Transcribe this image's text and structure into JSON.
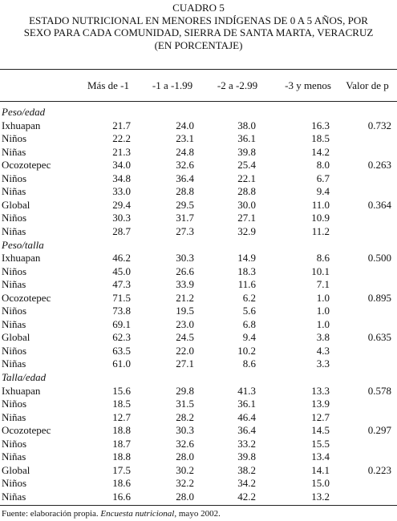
{
  "title": [
    "CUADRO 5",
    "ESTADO NUTRICIONAL EN MENORES INDÍGENAS DE 0 A 5 AÑOS, POR",
    "SEXO PARA CADA COMUNIDAD, SIERRA DE SANTA MARTA, VERACRUZ",
    "(EN PORCENTAJE)"
  ],
  "table": {
    "header": [
      "Más de -1",
      "-1 a -1.99",
      "-2 a -2.99",
      "-3 y menos",
      "Valor de p"
    ],
    "sections": [
      {
        "name": "Peso/edad",
        "rows": [
          [
            "Ixhuapan",
            "21.7",
            "24.0",
            "38.0",
            "16.3",
            "0.732"
          ],
          [
            "Niños",
            "22.2",
            "23.1",
            "36.1",
            "18.5"
          ],
          [
            "Niñas",
            "21.3",
            "24.8",
            "39.8",
            "14.2"
          ],
          [
            "Ocozotepec",
            "34.0",
            "32.6",
            "25.4",
            "8.0",
            "0.263"
          ],
          [
            "Niños",
            "34.8",
            "36.4",
            "22.1",
            "6.7"
          ],
          [
            "Niñas",
            "33.0",
            "28.8",
            "28.8",
            "9.4"
          ],
          [
            "Global",
            "29.4",
            "29.5",
            "30.0",
            "11.0",
            "0.364"
          ],
          [
            "Niños",
            "30.3",
            "31.7",
            "27.1",
            "10.9"
          ],
          [
            "Niñas",
            "28.7",
            "27.3",
            "32.9",
            "11.2"
          ]
        ]
      },
      {
        "name": "Peso/talla",
        "rows": [
          [
            "Ixhuapan",
            "46.2",
            "30.3",
            "14.9",
            "8.6",
            "0.500"
          ],
          [
            "Niños",
            "45.0",
            "26.6",
            "18.3",
            "10.1"
          ],
          [
            "Niñas",
            "47.3",
            "33.9",
            "11.6",
            "7.1"
          ],
          [
            "Ocozotepec",
            "71.5",
            "21.2",
            "6.2",
            "1.0",
            "0.895"
          ],
          [
            "Niños",
            "73.8",
            "19.5",
            "5.6",
            "1.0"
          ],
          [
            "Niñas",
            "69.1",
            "23.0",
            "6.8",
            "1.0"
          ],
          [
            "Global",
            "62.3",
            "24.5",
            "9.4",
            "3.8",
            "0.635"
          ],
          [
            "Niños",
            "63.5",
            "22.0",
            "10.2",
            "4.3"
          ],
          [
            "Niñas",
            "61.0",
            "27.1",
            "8.6",
            "3.3"
          ]
        ]
      },
      {
        "name": "Talla/edad",
        "rows": [
          [
            "Ixhuapan",
            "15.6",
            "29.8",
            "41.3",
            "13.3",
            "0.578"
          ],
          [
            "Niños",
            "18.5",
            "31.5",
            "36.1",
            "13.9"
          ],
          [
            "Niñas",
            "12.7",
            "28.2",
            "46.4",
            "12.7"
          ],
          [
            "Ocozotepec",
            "18.8",
            "30.3",
            "36.4",
            "14.5",
            "0.297"
          ],
          [
            "Niños",
            "18.7",
            "32.6",
            "33.2",
            "15.5"
          ],
          [
            "Niñas",
            "18.8",
            "28.0",
            "39.8",
            "13.4"
          ],
          [
            "Global",
            "17.5",
            "30.2",
            "38.2",
            "14.1",
            "0.223"
          ],
          [
            "Niños",
            "18.6",
            "32.2",
            "34.2",
            "15.0"
          ],
          [
            "Niñas",
            "16.6",
            "28.0",
            "42.2",
            "13.2"
          ]
        ]
      }
    ]
  },
  "footer": [
    "Fuente: elaboración propia. ",
    "Encuesta nutricional",
    ", mayo 2002."
  ]
}
